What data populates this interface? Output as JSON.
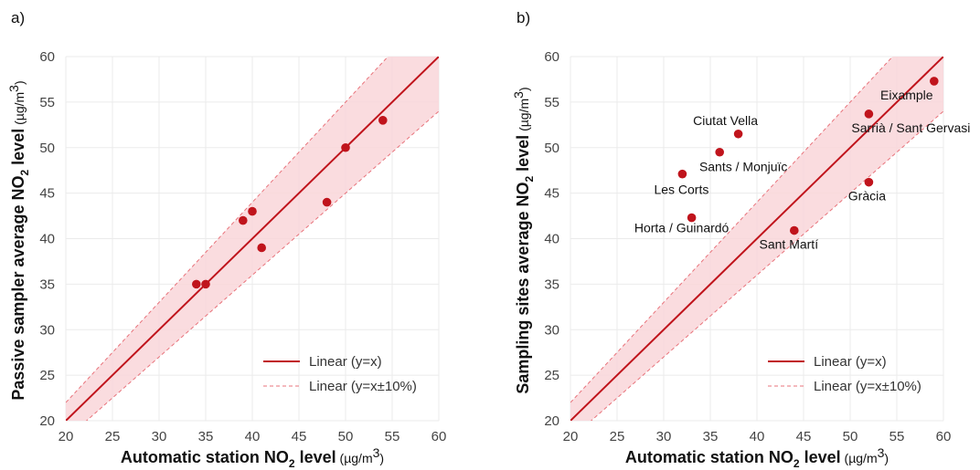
{
  "panels": [
    {
      "label": "a)",
      "xlabel": "Automatic station NO",
      "xlabel_sub": "2",
      "xlabel_tail": "level",
      "xunit": "(µg/m",
      "xunit_sup": "3",
      "xunit_tail": ")",
      "ylabel": "Passive sampler average NO",
      "ylabel_sub": "2",
      "ylabel_tail": "level",
      "yunit": "(µg/m",
      "yunit_sup": "3",
      "yunit_tail": ")",
      "legend": [
        "Linear (y=x)",
        "Linear (y=x±10%)"
      ]
    },
    {
      "label": "b)",
      "xlabel": "Automatic station NO",
      "xlabel_sub": "2",
      "xlabel_tail": "level",
      "xunit": "(µg/m",
      "xunit_sup": "3",
      "xunit_tail": ")",
      "ylabel": "Sampling sites average NO",
      "ylabel_sub": "2",
      "ylabel_tail": "level",
      "yunit": "(µg/m",
      "yunit_sup": "3",
      "yunit_tail": ")",
      "legend": [
        "Linear (y=x)",
        "Linear (y=x±10%)"
      ]
    }
  ],
  "chart_data": [
    {
      "type": "scatter",
      "xlim": [
        20,
        60
      ],
      "ylim": [
        20,
        60
      ],
      "xticks": [
        20,
        25,
        30,
        35,
        40,
        45,
        50,
        55,
        60
      ],
      "yticks": [
        20,
        25,
        30,
        35,
        40,
        45,
        50,
        55,
        60
      ],
      "grid": true,
      "legend_position": "bottom-right",
      "reference_lines": [
        "y=x",
        "y=x±10%"
      ],
      "colors": {
        "points": "#c0141c",
        "line": "#c0141c",
        "band": "#f9d6d9",
        "band_edge": "#e8737b"
      },
      "points": [
        {
          "x": 34,
          "y": 35
        },
        {
          "x": 35,
          "y": 35
        },
        {
          "x": 39,
          "y": 42
        },
        {
          "x": 40,
          "y": 43
        },
        {
          "x": 41,
          "y": 39
        },
        {
          "x": 48,
          "y": 44
        },
        {
          "x": 50,
          "y": 50
        },
        {
          "x": 54,
          "y": 53
        }
      ]
    },
    {
      "type": "scatter",
      "xlim": [
        20,
        60
      ],
      "ylim": [
        20,
        60
      ],
      "xticks": [
        20,
        25,
        30,
        35,
        40,
        45,
        50,
        55,
        60
      ],
      "yticks": [
        20,
        25,
        30,
        35,
        40,
        45,
        50,
        55,
        60
      ],
      "grid": true,
      "legend_position": "bottom-right",
      "reference_lines": [
        "y=x",
        "y=x±10%"
      ],
      "colors": {
        "points": "#c0141c",
        "line": "#c0141c",
        "band": "#f9d6d9",
        "band_edge": "#e8737b"
      },
      "points": [
        {
          "x": 38,
          "y": 51.5,
          "label": "Ciutat Vella",
          "label_pos": "above"
        },
        {
          "x": 36,
          "y": 49.5,
          "label": "Sants / Monjuïc",
          "label_pos": "below-right"
        },
        {
          "x": 32,
          "y": 47.1,
          "label": "Les Corts",
          "label_pos": "below"
        },
        {
          "x": 33,
          "y": 42.3,
          "label": "Horta / Guinardó",
          "label_pos": "below-left"
        },
        {
          "x": 44,
          "y": 40.9,
          "label": "Sant Martí",
          "label_pos": "below"
        },
        {
          "x": 52,
          "y": 53.7,
          "label": "Sarrià / Sant Gervasi",
          "label_pos": "below-right"
        },
        {
          "x": 52,
          "y": 46.2,
          "label": "Gràcia",
          "label_pos": "below"
        },
        {
          "x": 59,
          "y": 57.3,
          "label": "Eixample",
          "label_pos": "below-left"
        }
      ]
    }
  ]
}
